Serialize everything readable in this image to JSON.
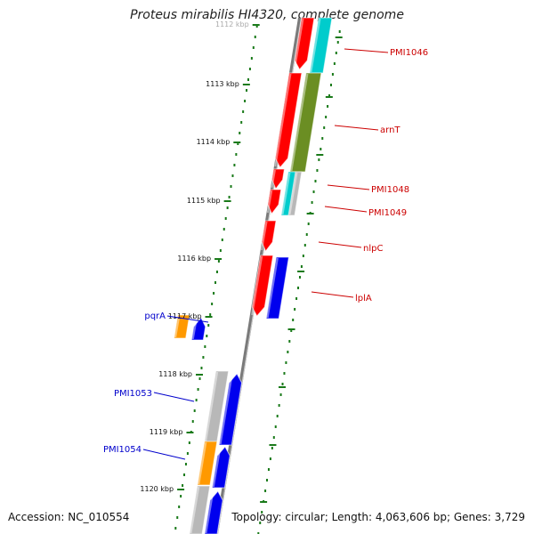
{
  "title": "Proteus mirabilis HI4320, complete genome",
  "footer": {
    "accession": "Accession: NC_010554",
    "topology": "Topology: circular; Length: 4,063,606 bp; Genes: 3,729"
  },
  "map": {
    "kbp_labels": [
      "1112 kbp",
      "1113 kbp",
      "1114 kbp",
      "1115 kbp",
      "1116 kbp",
      "1117 kbp",
      "1118 kbp",
      "1119 kbp",
      "1120 kbp"
    ],
    "colors": {
      "red": "#ff0000",
      "blue": "#0000ee",
      "cyan": "#00cccc",
      "olive": "#6b8e23",
      "orange": "#ff9900",
      "grey": "#b8b8b8",
      "tick_green": "#1a7a1a",
      "label_red": "#cc0000",
      "label_blue": "#0000cc"
    },
    "gene_labels": [
      {
        "text": "PMI1046",
        "color": "#cc0000"
      },
      {
        "text": "arnT",
        "color": "#cc0000"
      },
      {
        "text": "PMI1048",
        "color": "#cc0000"
      },
      {
        "text": "PMI1049",
        "color": "#cc0000"
      },
      {
        "text": "nlpC",
        "color": "#cc0000"
      },
      {
        "text": "lplA",
        "color": "#cc0000"
      },
      {
        "text": "pqrA",
        "color": "#0000cc"
      },
      {
        "text": "PMI1053",
        "color": "#0000cc"
      },
      {
        "text": "PMI1054",
        "color": "#0000cc"
      }
    ]
  }
}
